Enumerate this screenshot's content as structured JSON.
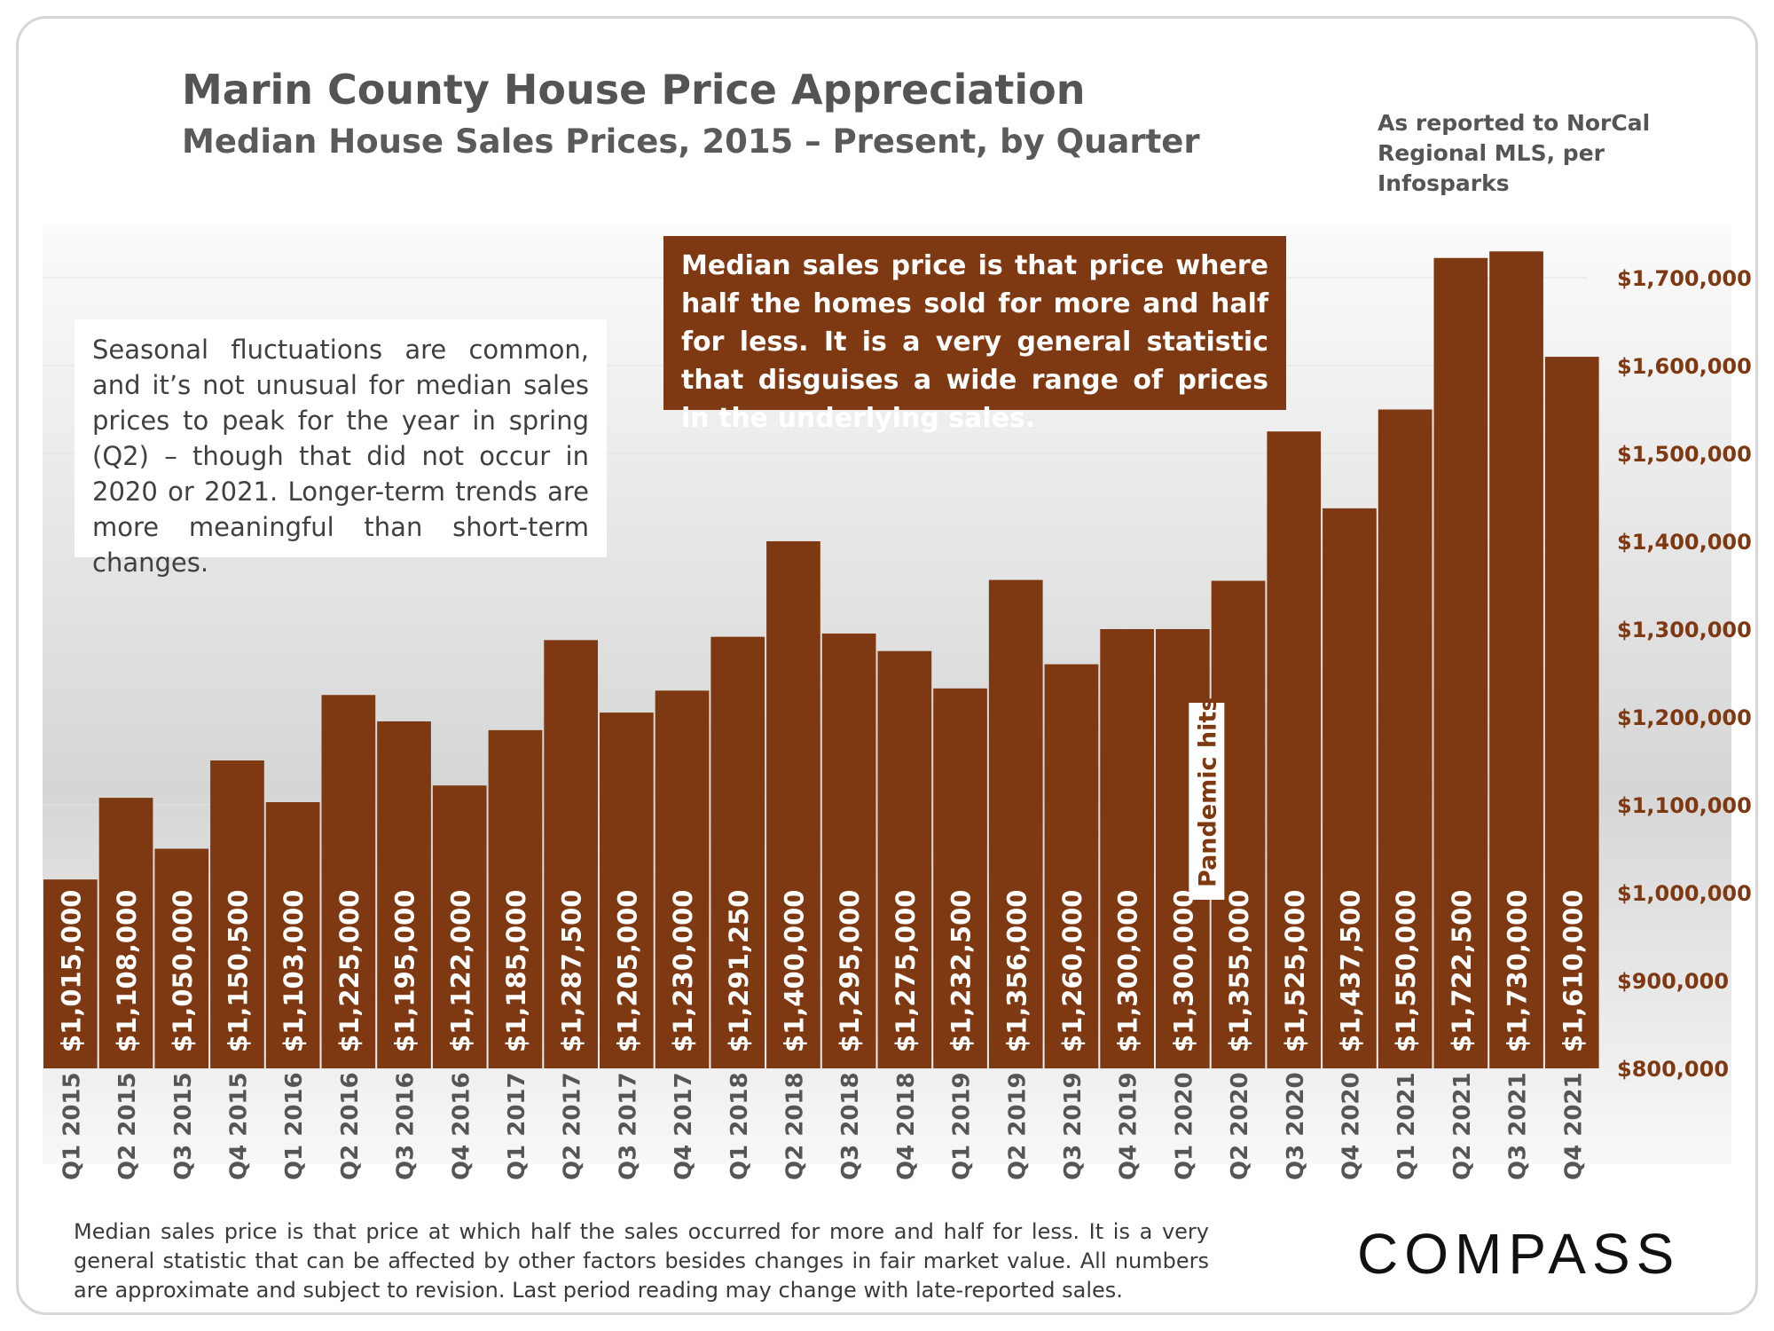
{
  "header": {
    "title": "Marin County House Price Appreciation",
    "subtitle": "Median House Sales Prices, 2015 – Present, by Quarter",
    "source_line1": "As reported to NorCal",
    "source_line2": "Regional MLS, per Infosparks"
  },
  "notes": {
    "left": "Seasonal fluctuations are common, and it’s not unusual for median sales prices to peak for the year in spring (Q2) – though that did not occur in 2020 or 2021. Longer-term trends are more meaningful than short-term changes.",
    "top": "Median sales price is that price where half the homes sold for more and half for less. It is a very general statistic that disguises a wide range of prices in the underlying sales."
  },
  "footnote": "Median sales price is that price at which half the sales occurred for more and half for less. It is a very general statistic that can be affected by other factors besides changes in fair market value. All numbers are approximate and subject to revision. Last period reading may change with late-reported sales.",
  "logo": "COMPASS",
  "colors": {
    "bar": "#7e3912",
    "axis_label": "#7e3912",
    "bar_label": "#ffffff"
  },
  "chart_data": {
    "type": "bar",
    "title": "Marin County House Price Appreciation",
    "subtitle": "Median House Sales Prices, 2015 – Present, by Quarter",
    "categories": [
      "Q1 2015",
      "Q2 2015",
      "Q3 2015",
      "Q4 2015",
      "Q1 2016",
      "Q2 2016",
      "Q3 2016",
      "Q4 2016",
      "Q1 2017",
      "Q2 2017",
      "Q3 2017",
      "Q4 2017",
      "Q1 2018",
      "Q2 2018",
      "Q3 2018",
      "Q4 2018",
      "Q1 2019",
      "Q2 2019",
      "Q3 2019",
      "Q4 2019",
      "Q1 2020",
      "Q2 2020",
      "Q3 2020",
      "Q4 2020",
      "Q1 2021",
      "Q2 2021",
      "Q3 2021",
      "Q4 2021"
    ],
    "values": [
      1015000,
      1108000,
      1050000,
      1150500,
      1103000,
      1225000,
      1195000,
      1122000,
      1185000,
      1287500,
      1205000,
      1230000,
      1291250,
      1400000,
      1295000,
      1275000,
      1232500,
      1356000,
      1260000,
      1300000,
      1300000,
      1355000,
      1525000,
      1437500,
      1550000,
      1722500,
      1730000,
      1610000
    ],
    "value_labels": [
      "$1,015,000",
      "$1,108,000",
      "$1,050,000",
      "$1,150,500",
      "$1,103,000",
      "$1,225,000",
      "$1,195,000",
      "$1,122,000",
      "$1,185,000",
      "$1,287,500",
      "$1,205,000",
      "$1,230,000",
      "$1,291,250",
      "$1,400,000",
      "$1,295,000",
      "$1,275,000",
      "$1,232,500",
      "$1,356,000",
      "$1,260,000",
      "$1,300,000",
      "$1,300,000",
      "$1,355,000",
      "$1,525,000",
      "$1,437,500",
      "$1,550,000",
      "$1,722,500",
      "$1,730,000",
      "$1,610,000"
    ],
    "ylim": [
      800000,
      1800000
    ],
    "y_ticks": [
      800000,
      900000,
      1000000,
      1100000,
      1200000,
      1300000,
      1400000,
      1500000,
      1600000,
      1700000
    ],
    "y_tick_labels": [
      "$800,000",
      "$900,000",
      "$1,000,000",
      "$1,100,000",
      "$1,200,000",
      "$1,300,000",
      "$1,400,000",
      "$1,500,000",
      "$1,600,000",
      "$1,700,000"
    ],
    "y_axis_side": "right",
    "grid": true,
    "annotations": [
      {
        "text": "Pandemic hits",
        "category": "Q1 2020"
      }
    ]
  }
}
